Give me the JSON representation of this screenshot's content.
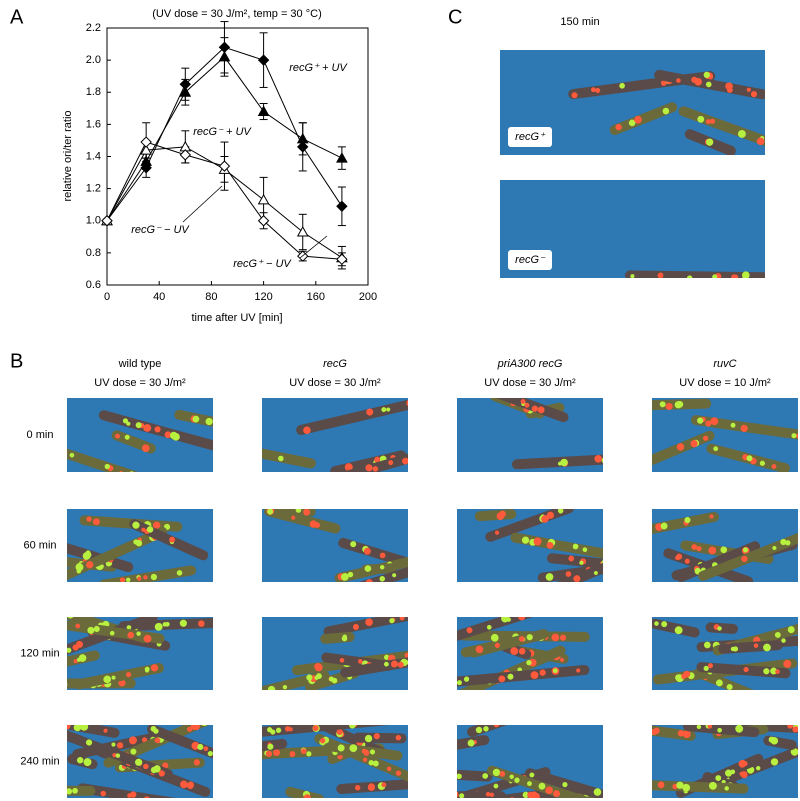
{
  "panel_a": {
    "label": "A"
  },
  "chart_data": {
    "type": "line",
    "title": "(UV dose = 30 J/m², temp = 30 °C)",
    "x_label": "time after UV [min]",
    "y_label": "relative ori/ter ratio",
    "x": [
      0,
      30,
      60,
      90,
      120,
      150,
      180
    ],
    "xlim": [
      0,
      200
    ],
    "xticks": [
      0,
      40,
      80,
      120,
      160,
      200
    ],
    "ylim": [
      0.6,
      2.2
    ],
    "yticks": [
      0.6,
      0.8,
      {
        "value": 1,
        "label": "1.0"
      },
      1.2,
      1.4,
      1.6,
      1.8,
      {
        "value": 2,
        "label": "2.0"
      },
      2.2
    ],
    "series": [
      {
        "name": "recG⁺ + UV",
        "color": "#000000",
        "marker": "diamond",
        "filled": true,
        "values": [
          1.0,
          1.33,
          1.85,
          2.08,
          2.0,
          1.46,
          1.09
        ],
        "errors": [
          0,
          0.06,
          0.1,
          0.16,
          0.17,
          0.15,
          0.12
        ]
      },
      {
        "name": "recG⁻ + UV",
        "color": "#000000",
        "marker": "triangle",
        "filled": true,
        "values": [
          1.0,
          1.37,
          1.8,
          2.02,
          1.68,
          1.51,
          1.39
        ],
        "errors": [
          0,
          0.05,
          0.08,
          0.12,
          0.05,
          0.1,
          0.07
        ]
      },
      {
        "name": "recG⁻ − UV",
        "color": "#000000",
        "marker": "triangle",
        "filled": false,
        "values": [
          1.0,
          1.44,
          1.46,
          1.32,
          1.13,
          0.93,
          0.77
        ],
        "errors": [
          0,
          0.05,
          0.1,
          0.08,
          0.14,
          0.11,
          0.07
        ]
      },
      {
        "name": "recG⁺ − UV",
        "color": "#000000",
        "marker": "diamond",
        "filled": false,
        "values": [
          1.0,
          1.49,
          1.41,
          1.34,
          1.0,
          0.78,
          0.76
        ],
        "errors": [
          0,
          0.12,
          0.05,
          0.15,
          0.05,
          0.03,
          0.04
        ]
      }
    ]
  },
  "panel_b": {
    "label": "B",
    "columns": [
      {
        "name": "wild type",
        "dose": "UV dose = 30 J/m²"
      },
      {
        "name": "recG",
        "dose": "UV dose = 30 J/m²"
      },
      {
        "name": "priA300 recG",
        "dose": "UV dose = 30 J/m²"
      },
      {
        "name": "ruvC",
        "dose": "UV dose = 10 J/m²"
      }
    ],
    "rows": [
      "0 min",
      "60 min",
      "120 min",
      "240 min"
    ]
  },
  "panel_c": {
    "label": "C",
    "time": "150 min",
    "images": [
      "recG⁺",
      "recG⁻"
    ]
  }
}
